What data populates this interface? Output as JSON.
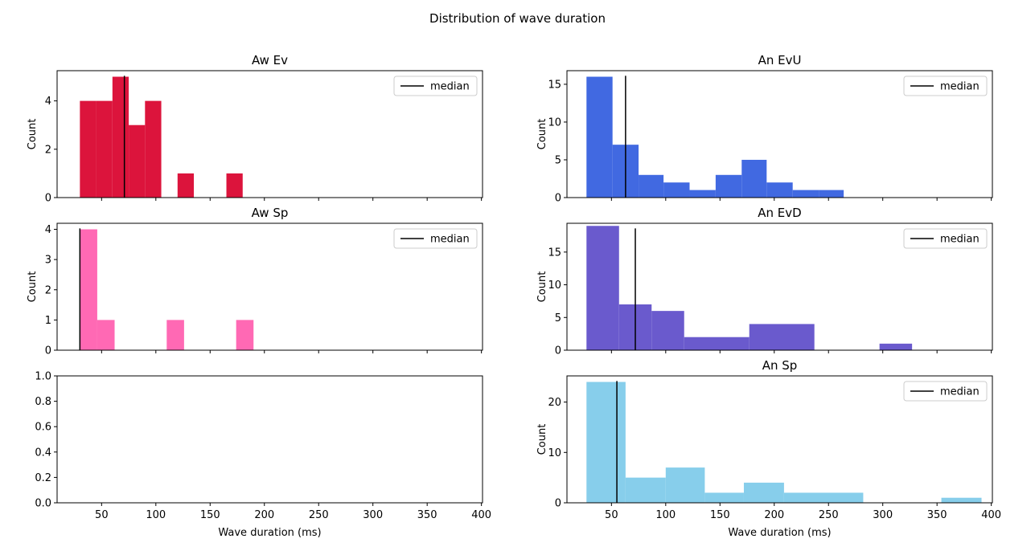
{
  "figure": {
    "title": "Distribution of wave duration"
  },
  "chart_data": [
    {
      "type": "bar",
      "title": "Aw Ev",
      "xlabel": "",
      "ylabel": "Count",
      "xlim": [
        9,
        401
      ],
      "ylim": [
        0,
        5.25
      ],
      "xticks": [
        50,
        100,
        150,
        200,
        250,
        300,
        350,
        400
      ],
      "show_x_ticklabels": false,
      "yticks": [
        0,
        2,
        4
      ],
      "color": "#DC143C",
      "bins": [
        {
          "x0": 30,
          "x1": 45,
          "count": 4
        },
        {
          "x0": 45,
          "x1": 60,
          "count": 4
        },
        {
          "x0": 60,
          "x1": 75,
          "count": 5
        },
        {
          "x0": 75,
          "x1": 90,
          "count": 3
        },
        {
          "x0": 90,
          "x1": 105,
          "count": 4
        },
        {
          "x0": 120,
          "x1": 135,
          "count": 1
        },
        {
          "x0": 165,
          "x1": 180,
          "count": 1
        }
      ],
      "median": 71,
      "legend": {
        "label": "median",
        "loc": "upper right"
      }
    },
    {
      "type": "bar",
      "title": "An EvU",
      "xlabel": "",
      "ylabel": "Count",
      "xlim": [
        9,
        401
      ],
      "ylim": [
        0,
        16.8
      ],
      "xticks": [
        50,
        100,
        150,
        200,
        250,
        300,
        350,
        400
      ],
      "show_x_ticklabels": false,
      "yticks": [
        0,
        5,
        10,
        15
      ],
      "color": "#4169E1",
      "bins": [
        {
          "x0": 27,
          "x1": 51,
          "count": 16
        },
        {
          "x0": 51,
          "x1": 75,
          "count": 7
        },
        {
          "x0": 75,
          "x1": 98,
          "count": 3
        },
        {
          "x0": 98,
          "x1": 122,
          "count": 2
        },
        {
          "x0": 122,
          "x1": 146,
          "count": 1
        },
        {
          "x0": 146,
          "x1": 170,
          "count": 3
        },
        {
          "x0": 170,
          "x1": 193,
          "count": 5
        },
        {
          "x0": 193,
          "x1": 217,
          "count": 2
        },
        {
          "x0": 217,
          "x1": 241,
          "count": 1
        },
        {
          "x0": 241,
          "x1": 264,
          "count": 1
        }
      ],
      "median": 63,
      "legend": {
        "label": "median",
        "loc": "upper right"
      }
    },
    {
      "type": "bar",
      "title": "Aw Sp",
      "xlabel": "",
      "ylabel": "Count",
      "xlim": [
        9,
        401
      ],
      "ylim": [
        0,
        4.2
      ],
      "xticks": [
        50,
        100,
        150,
        200,
        250,
        300,
        350,
        400
      ],
      "show_x_ticklabels": false,
      "yticks": [
        0,
        1,
        2,
        3,
        4
      ],
      "color": "#FF69B4",
      "bins": [
        {
          "x0": 30,
          "x1": 46,
          "count": 4
        },
        {
          "x0": 46,
          "x1": 62,
          "count": 1
        },
        {
          "x0": 110,
          "x1": 126,
          "count": 1
        },
        {
          "x0": 174,
          "x1": 190,
          "count": 1
        }
      ],
      "median": 30,
      "legend": {
        "label": "median",
        "loc": "upper right"
      }
    },
    {
      "type": "bar",
      "title": "An EvD",
      "xlabel": "",
      "ylabel": "Count",
      "xlim": [
        9,
        401
      ],
      "ylim": [
        0,
        19.4
      ],
      "xticks": [
        50,
        100,
        150,
        200,
        250,
        300,
        350,
        400
      ],
      "show_x_ticklabels": false,
      "yticks": [
        0,
        5,
        10,
        15
      ],
      "color": "#6A5ACD",
      "bins": [
        {
          "x0": 27,
          "x1": 57,
          "count": 19
        },
        {
          "x0": 57,
          "x1": 87,
          "count": 7
        },
        {
          "x0": 87,
          "x1": 117,
          "count": 6
        },
        {
          "x0": 117,
          "x1": 177,
          "count": 2
        },
        {
          "x0": 177,
          "x1": 237,
          "count": 4
        },
        {
          "x0": 297,
          "x1": 327,
          "count": 1
        }
      ],
      "median": 72,
      "legend": {
        "label": "median",
        "loc": "upper right"
      }
    },
    {
      "type": "bar",
      "title": "",
      "xlabel": "Wave duration (ms)",
      "ylabel": "",
      "xlim": [
        9,
        401
      ],
      "ylim": [
        0,
        1
      ],
      "xticks": [
        50,
        100,
        150,
        200,
        250,
        300,
        350,
        400
      ],
      "show_x_ticklabels": true,
      "yticks": [
        0.0,
        0.2,
        0.4,
        0.6,
        0.8,
        1.0
      ],
      "ytick_labels": [
        "0.0",
        "0.2",
        "0.4",
        "0.6",
        "0.8",
        "1.0"
      ],
      "color": "#000000",
      "bins": [],
      "median": null,
      "legend": null
    },
    {
      "type": "bar",
      "title": "An Sp",
      "xlabel": "Wave duration (ms)",
      "ylabel": "Count",
      "xlim": [
        9,
        401
      ],
      "ylim": [
        0,
        25.2
      ],
      "xticks": [
        50,
        100,
        150,
        200,
        250,
        300,
        350,
        400
      ],
      "show_x_ticklabels": true,
      "yticks": [
        0,
        10,
        20
      ],
      "color": "#87CEEB",
      "bins": [
        {
          "x0": 27,
          "x1": 63,
          "count": 24
        },
        {
          "x0": 63,
          "x1": 100,
          "count": 5
        },
        {
          "x0": 100,
          "x1": 136,
          "count": 7
        },
        {
          "x0": 136,
          "x1": 172,
          "count": 2
        },
        {
          "x0": 172,
          "x1": 209,
          "count": 4
        },
        {
          "x0": 209,
          "x1": 282,
          "count": 2
        },
        {
          "x0": 354,
          "x1": 391,
          "count": 1
        }
      ],
      "median": 55,
      "legend": {
        "label": "median",
        "loc": "upper right"
      }
    }
  ]
}
